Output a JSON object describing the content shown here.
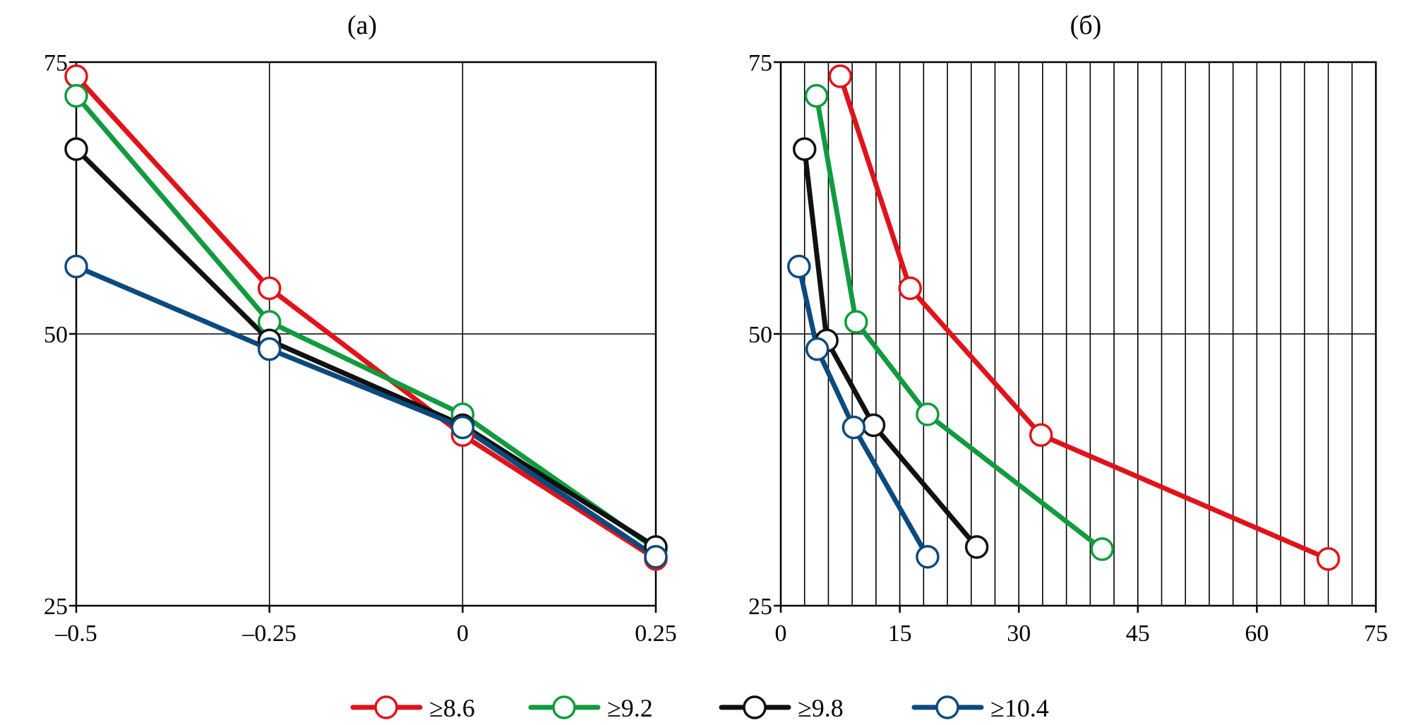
{
  "legend": [
    {
      "label": "≥8.6",
      "color": "#e0131a"
    },
    {
      "label": "≥9.2",
      "color": "#119b3e"
    },
    {
      "label": "≥9.8",
      "color": "#111111"
    },
    {
      "label": "≥10.4",
      "color": "#0b4a7f"
    }
  ],
  "chart_data": [
    {
      "type": "line",
      "title": "(а)",
      "xlabel": "",
      "ylabel": "",
      "xlim": [
        -0.5,
        0.25
      ],
      "ylim": [
        25,
        75
      ],
      "grid": true,
      "x_ticks": [
        -0.5,
        -0.25,
        0,
        0.25
      ],
      "x_tick_labels": [
        "–0.5",
        "–0.25",
        "0",
        "0.25"
      ],
      "y_ticks": [
        25,
        50,
        75
      ],
      "y_tick_labels": [
        "25",
        "50",
        "75"
      ],
      "series": [
        {
          "name": "≥8.6",
          "color": "#e0131a",
          "points": [
            [
              -0.5,
              73.7
            ],
            [
              -0.25,
              54.2
            ],
            [
              0,
              40.7
            ],
            [
              0.25,
              29.3
            ]
          ]
        },
        {
          "name": "≥9.2",
          "color": "#119b3e",
          "points": [
            [
              -0.5,
              71.9
            ],
            [
              -0.25,
              51.1
            ],
            [
              0,
              42.6
            ],
            [
              0.25,
              30.2
            ]
          ]
        },
        {
          "name": "≥9.8",
          "color": "#111111",
          "points": [
            [
              -0.5,
              67.0
            ],
            [
              -0.25,
              49.4
            ],
            [
              0,
              41.6
            ],
            [
              0.25,
              30.4
            ]
          ]
        },
        {
          "name": "≥10.4",
          "color": "#0b4a7f",
          "points": [
            [
              -0.5,
              56.2
            ],
            [
              -0.25,
              48.6
            ],
            [
              0,
              41.4
            ],
            [
              0.25,
              29.5
            ]
          ]
        }
      ]
    },
    {
      "type": "line",
      "title": "(б)",
      "xlabel": "",
      "ylabel": "",
      "xlim": [
        0,
        75
      ],
      "ylim": [
        25,
        75
      ],
      "grid": true,
      "x_ticks": [
        0,
        15,
        30,
        45,
        60,
        75
      ],
      "x_tick_labels": [
        "0",
        "15",
        "30",
        "45",
        "60",
        "75"
      ],
      "x_grid": [
        3,
        6,
        9,
        12,
        15,
        18,
        21,
        24,
        27,
        30,
        33,
        36,
        39,
        42,
        45,
        48,
        51,
        54,
        57,
        60,
        63,
        66,
        69,
        72
      ],
      "y_ticks": [
        25,
        50,
        75
      ],
      "y_tick_labels": [
        "25",
        "50",
        "75"
      ],
      "series": [
        {
          "name": "≥8.6",
          "color": "#e0131a",
          "points": [
            [
              7.5,
              73.7
            ],
            [
              16.3,
              54.2
            ],
            [
              32.8,
              40.7
            ],
            [
              69.0,
              29.3
            ]
          ]
        },
        {
          "name": "≥9.2",
          "color": "#119b3e",
          "points": [
            [
              4.5,
              71.9
            ],
            [
              9.5,
              51.1
            ],
            [
              18.5,
              42.6
            ],
            [
              40.5,
              30.2
            ]
          ]
        },
        {
          "name": "≥9.8",
          "color": "#111111",
          "points": [
            [
              3.0,
              67.0
            ],
            [
              5.8,
              49.4
            ],
            [
              11.7,
              41.6
            ],
            [
              24.7,
              30.4
            ]
          ]
        },
        {
          "name": "≥10.4",
          "color": "#0b4a7f",
          "points": [
            [
              2.3,
              56.2
            ],
            [
              4.6,
              48.6
            ],
            [
              9.2,
              41.4
            ],
            [
              18.5,
              29.5
            ]
          ]
        }
      ]
    }
  ]
}
